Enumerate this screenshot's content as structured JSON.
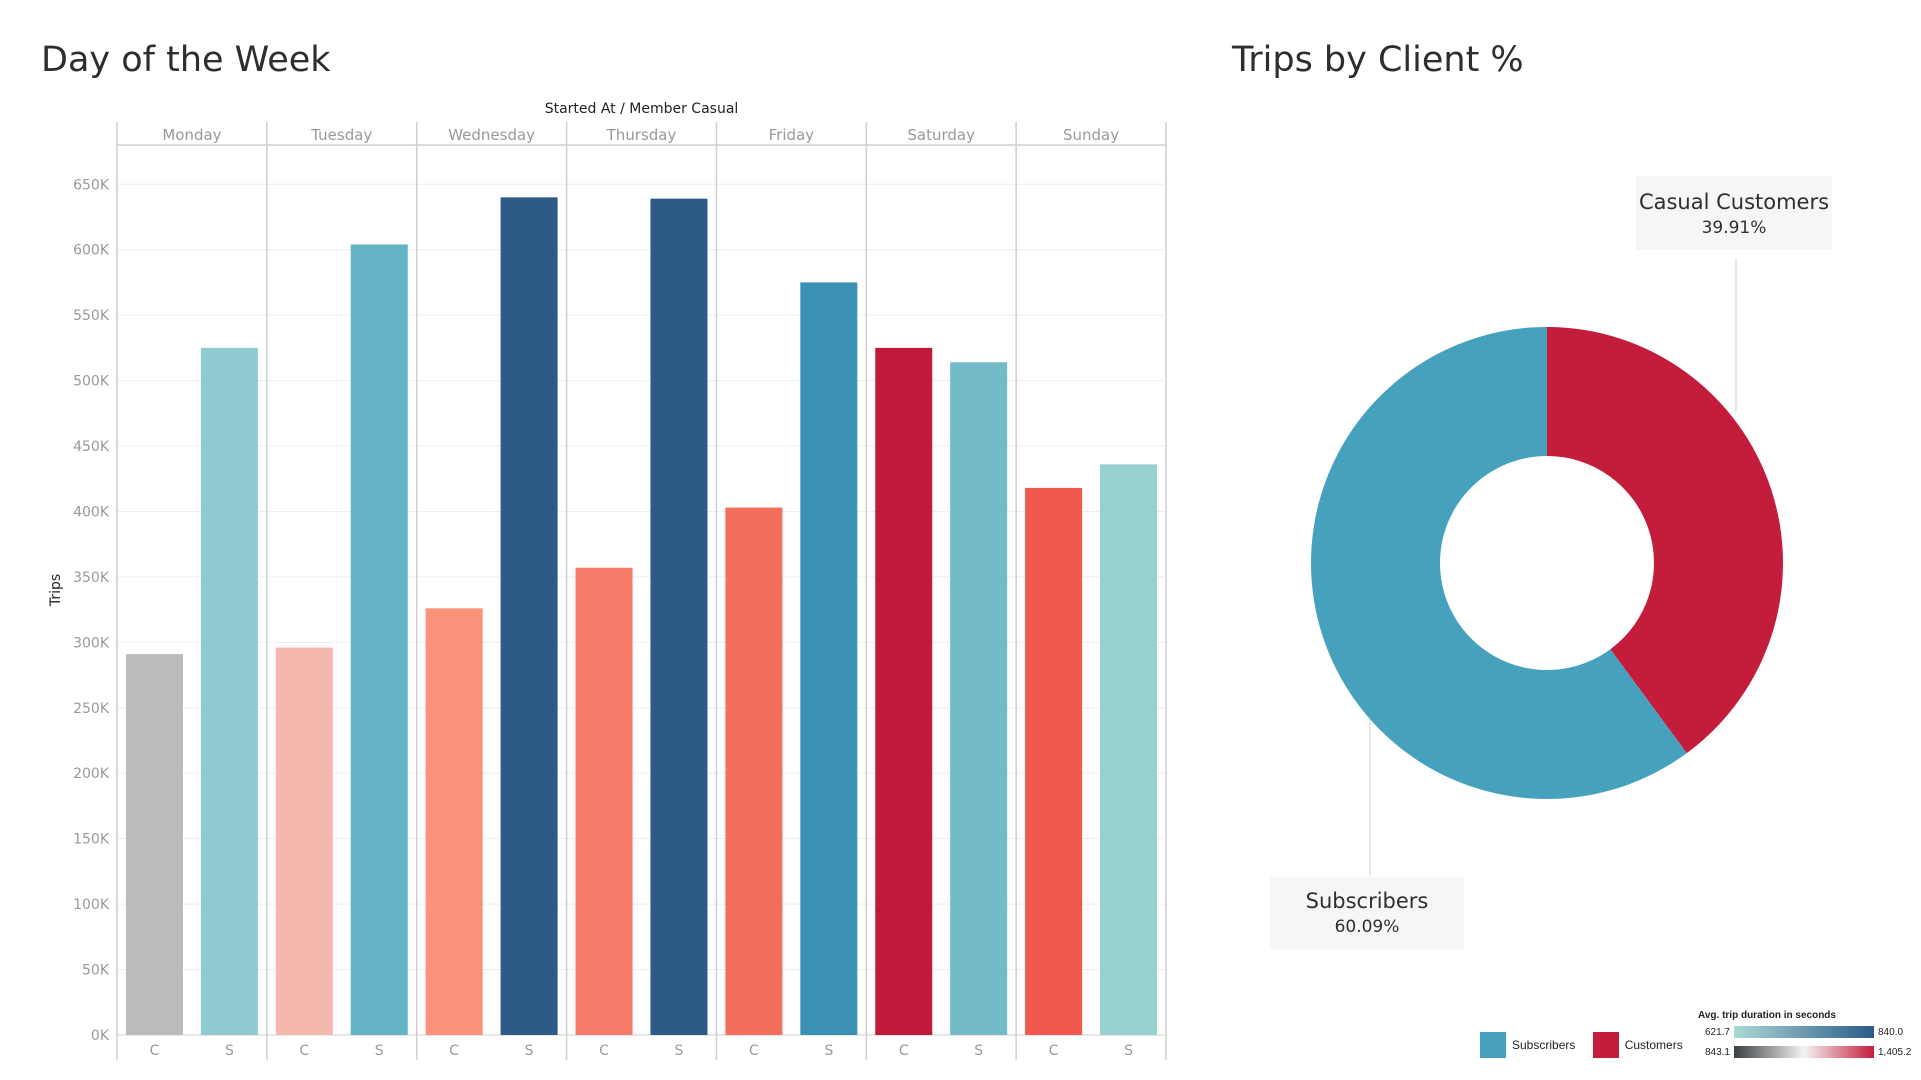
{
  "left_title": "Day of the Week",
  "right_title": "Trips by Client %",
  "chart_data": [
    {
      "type": "bar",
      "title": "Day of the Week",
      "column_header": "Started At  /  Member Casual",
      "ylabel": "Trips",
      "ylim": [
        0,
        680000
      ],
      "yticks": [
        0,
        50000,
        100000,
        150000,
        200000,
        250000,
        300000,
        350000,
        400000,
        450000,
        500000,
        550000,
        600000,
        650000
      ],
      "ytick_labels": [
        "0K",
        "50K",
        "100K",
        "150K",
        "200K",
        "250K",
        "300K",
        "350K",
        "400K",
        "450K",
        "500K",
        "550K",
        "600K",
        "650K"
      ],
      "days": [
        {
          "day": "Monday",
          "bars": [
            {
              "cat": "C",
              "value": 291000,
              "color": "#babcbb"
            },
            {
              "cat": "S",
              "value": 525000,
              "color": "#8ecad0"
            }
          ]
        },
        {
          "day": "Tuesday",
          "bars": [
            {
              "cat": "C",
              "value": 296000,
              "color": "#f4b8ae"
            },
            {
              "cat": "S",
              "value": 604000,
              "color": "#64b3c4"
            }
          ]
        },
        {
          "day": "Wednesday",
          "bars": [
            {
              "cat": "C",
              "value": 326000,
              "color": "#fa9179"
            },
            {
              "cat": "S",
              "value": 640000,
              "color": "#2d5a87"
            }
          ]
        },
        {
          "day": "Thursday",
          "bars": [
            {
              "cat": "C",
              "value": 357000,
              "color": "#f47b67"
            },
            {
              "cat": "S",
              "value": 639000,
              "color": "#2d5a87"
            }
          ]
        },
        {
          "day": "Friday",
          "bars": [
            {
              "cat": "C",
              "value": 403000,
              "color": "#f36f5c"
            },
            {
              "cat": "S",
              "value": 575000,
              "color": "#3a91b3"
            }
          ]
        },
        {
          "day": "Saturday",
          "bars": [
            {
              "cat": "C",
              "value": 525000,
              "color": "#c0193a"
            },
            {
              "cat": "S",
              "value": 514000,
              "color": "#73bbc7"
            }
          ]
        },
        {
          "day": "Sunday",
          "bars": [
            {
              "cat": "C",
              "value": 418000,
              "color": "#f2594e"
            },
            {
              "cat": "S",
              "value": 436000,
              "color": "#96d0cf"
            }
          ]
        }
      ],
      "grid": true
    },
    {
      "type": "pie",
      "title": "Trips by Client %",
      "donut": true,
      "slices": [
        {
          "label": "Casual Customers",
          "value": 39.91,
          "pct_label": "39.91%",
          "color": "#c41c3b"
        },
        {
          "label": "Subscribers",
          "value": 60.09,
          "pct_label": "60.09%",
          "color": "#46a2bc"
        }
      ]
    }
  ],
  "legend": {
    "items": [
      {
        "label": "Subscribers",
        "color": "#46a2bc"
      },
      {
        "label": "Customers",
        "color": "#c41c3b"
      }
    ],
    "gradient": {
      "title": "Avg. trip duration in seconds",
      "rows": [
        {
          "min": "621.7",
          "max": "840.0",
          "from": "#a8dad6",
          "to": "#2d5a87"
        },
        {
          "min": "843.1",
          "max": "1,405.2",
          "from": "#3c3f42",
          "mid": "#f3f3f3",
          "to": "#c41c3b"
        }
      ]
    }
  }
}
